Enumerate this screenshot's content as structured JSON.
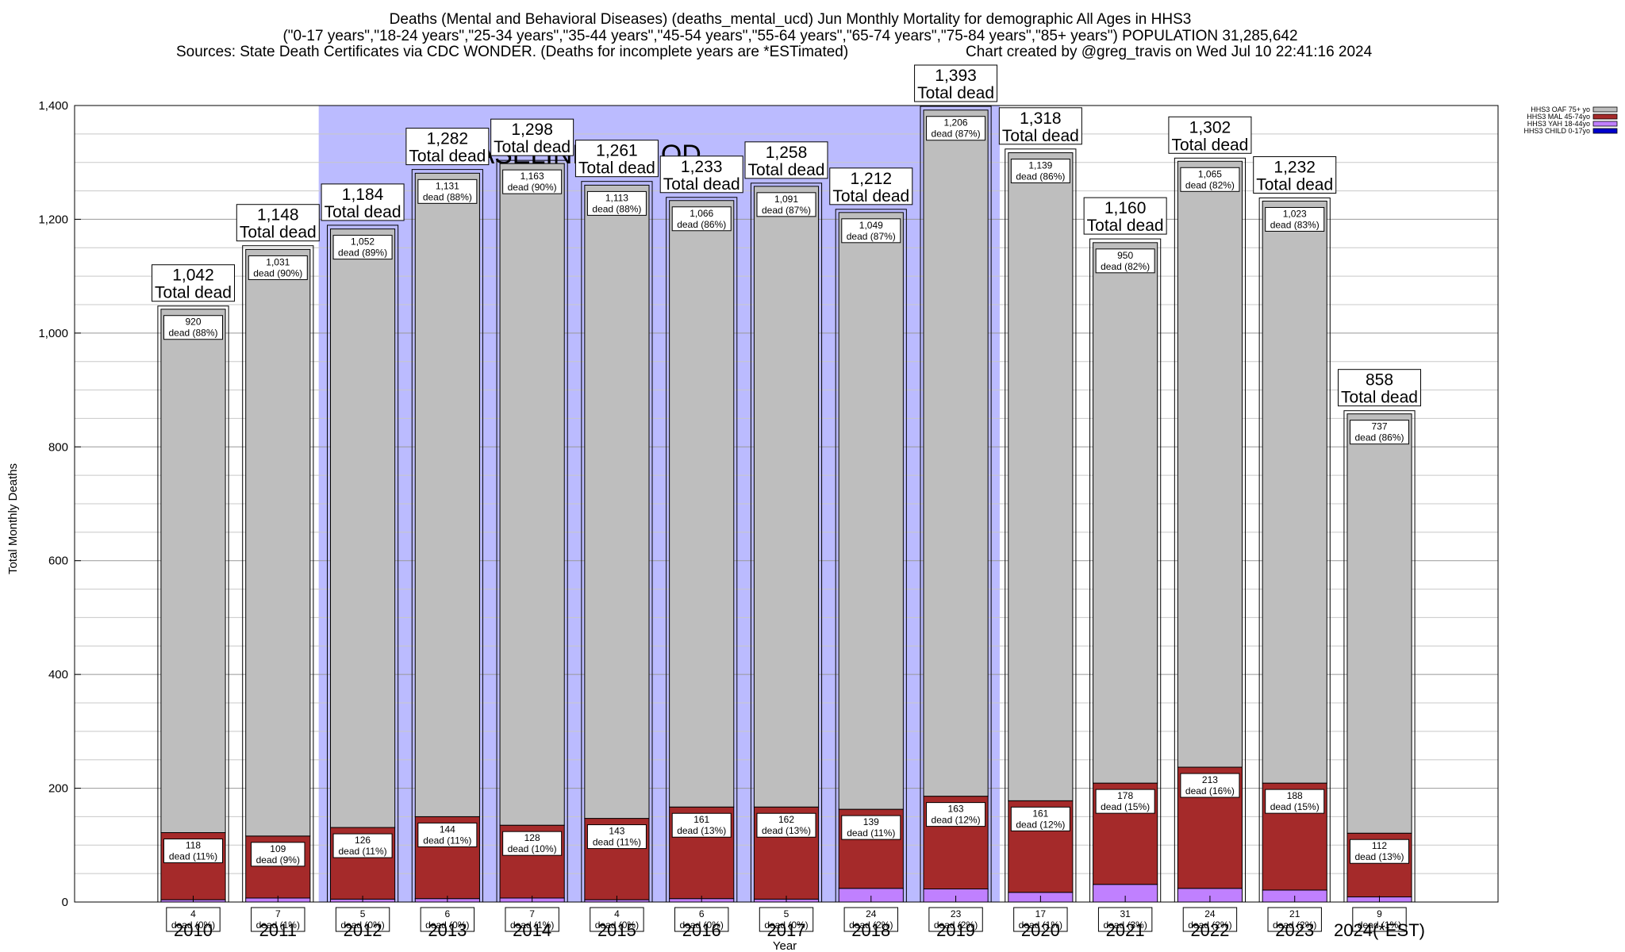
{
  "chart_data": {
    "type": "bar",
    "stacked": true,
    "title": "Deaths (Mental and Behavioral Diseases) (deaths_mental_ucd) Jun Monthly Mortality for demographic All Ages in HHS3",
    "subtitle": "(\"0-17 years\",\"18-24 years\",\"25-34 years\",\"35-44 years\",\"45-54 years\",\"55-64 years\",\"65-74 years\",\"75-84 years\",\"85+ years\") POPULATION 31,285,642",
    "source": "Sources: State Death Certificates via CDC WONDER. (Deaths for incomplete years are *ESTimated)",
    "credit": "Chart created by @greg_travis on Wed Jul 10 22:41:16 2024",
    "xlabel": "Year",
    "ylabel": "Total Monthly Deaths",
    "ylim": [
      0,
      1400
    ],
    "yticks": [
      0,
      200,
      400,
      600,
      800,
      1000,
      1200,
      1400
    ],
    "ytick_labels": [
      "0",
      "200",
      "400",
      "600",
      "800",
      "1,000",
      "1,200",
      "1,400"
    ],
    "grid": true,
    "legend_position": "top-right",
    "categories": [
      "2010",
      "2011",
      "2012",
      "2013",
      "2014",
      "2015",
      "2016",
      "2017",
      "2018",
      "2019",
      "2020",
      "2021",
      "2022",
      "2023",
      "2024(*EST)"
    ],
    "series": [
      {
        "name": "HHS3 CHILD 0-17yo",
        "color": "#0000cc",
        "values": [
          0,
          0,
          0,
          0,
          0,
          0,
          0,
          0,
          0,
          0,
          0,
          0,
          0,
          0,
          0
        ],
        "labels": []
      },
      {
        "name": "HHS3 YAH 18-44yo",
        "color": "#c080ff",
        "values": [
          4,
          7,
          5,
          6,
          7,
          4,
          6,
          5,
          24,
          23,
          17,
          31,
          24,
          21,
          9
        ],
        "labels": [
          [
            "4",
            "dead (0%)"
          ],
          [
            "7",
            "dead (1%)"
          ],
          [
            "5",
            "dead (0%)"
          ],
          [
            "6",
            "dead (0%)"
          ],
          [
            "7",
            "dead (1%)"
          ],
          [
            "4",
            "dead (0%)"
          ],
          [
            "6",
            "dead (0%)"
          ],
          [
            "5",
            "dead (0%)"
          ],
          [
            "24",
            "dead (2%)"
          ],
          [
            "23",
            "dead (2%)"
          ],
          [
            "17",
            "dead (1%)"
          ],
          [
            "31",
            "dead (3%)"
          ],
          [
            "24",
            "dead (2%)"
          ],
          [
            "21",
            "dead (2%)"
          ],
          [
            "9",
            "dead (1%)"
          ]
        ]
      },
      {
        "name": "HHS3 MAL 45-74yo",
        "color": "#a52a2a",
        "values": [
          118,
          109,
          126,
          144,
          128,
          143,
          161,
          162,
          139,
          163,
          161,
          178,
          213,
          188,
          112
        ],
        "labels": [
          [
            "118",
            "dead (11%)"
          ],
          [
            "109",
            "dead (9%)"
          ],
          [
            "126",
            "dead (11%)"
          ],
          [
            "144",
            "dead (11%)"
          ],
          [
            "128",
            "dead (10%)"
          ],
          [
            "143",
            "dead (11%)"
          ],
          [
            "161",
            "dead (13%)"
          ],
          [
            "162",
            "dead (13%)"
          ],
          [
            "139",
            "dead (11%)"
          ],
          [
            "163",
            "dead (12%)"
          ],
          [
            "161",
            "dead (12%)"
          ],
          [
            "178",
            "dead (15%)"
          ],
          [
            "213",
            "dead (16%)"
          ],
          [
            "188",
            "dead (15%)"
          ],
          [
            "112",
            "dead (13%)"
          ]
        ]
      },
      {
        "name": "HHS3 OAF 75+ yo",
        "color": "#bebebe",
        "values": [
          920,
          1031,
          1052,
          1131,
          1163,
          1113,
          1066,
          1091,
          1049,
          1206,
          1139,
          950,
          1065,
          1023,
          737
        ],
        "labels": [
          [
            "920",
            "dead (88%)"
          ],
          [
            "1,031",
            "dead (90%)"
          ],
          [
            "1,052",
            "dead (89%)"
          ],
          [
            "1,131",
            "dead (88%)"
          ],
          [
            "1,163",
            "dead (90%)"
          ],
          [
            "1,113",
            "dead (88%)"
          ],
          [
            "1,066",
            "dead (86%)"
          ],
          [
            "1,091",
            "dead (87%)"
          ],
          [
            "1,049",
            "dead (87%)"
          ],
          [
            "1,206",
            "dead (87%)"
          ],
          [
            "1,139",
            "dead (86%)"
          ],
          [
            "950",
            "dead (82%)"
          ],
          [
            "1,065",
            "dead (82%)"
          ],
          [
            "1,023",
            "dead (83%)"
          ],
          [
            "737",
            "dead (86%)"
          ]
        ]
      }
    ],
    "legend_order": [
      "HHS3 OAF 75+ yo",
      "HHS3 MAL 45-74yo",
      "HHS3 YAH 18-44yo",
      "HHS3 CHILD 0-17yo"
    ],
    "totals": [
      1042,
      1148,
      1184,
      1282,
      1298,
      1261,
      1233,
      1258,
      1212,
      1393,
      1318,
      1160,
      1302,
      1232,
      858
    ],
    "total_labels": [
      "1,042",
      "1,148",
      "1,184",
      "1,282",
      "1,298",
      "1,261",
      "1,233",
      "1,258",
      "1,212",
      "1,393",
      "1,318",
      "1,160",
      "1,302",
      "1,232",
      "858"
    ],
    "total_suffix": "Total dead",
    "baseline": {
      "label": "BASELINE PERIOD",
      "from": "2012",
      "to": "2019",
      "color": "#bbbbff"
    }
  }
}
